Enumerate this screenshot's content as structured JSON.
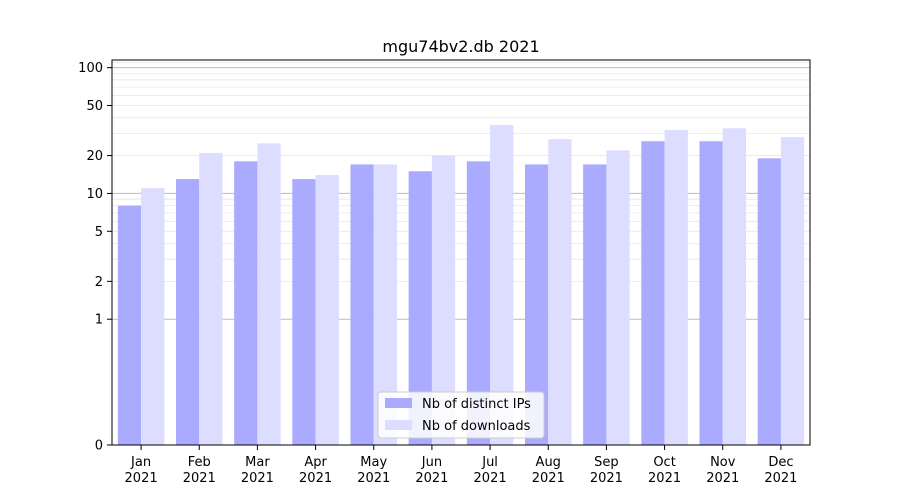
{
  "chart_data": {
    "type": "bar",
    "title": "mgu74bv2.db 2021",
    "xlabel": "",
    "ylabel": "",
    "yscale": "symlog",
    "ylim": [
      0,
      115
    ],
    "yticks": [
      0,
      1,
      2,
      5,
      10,
      20,
      50,
      100
    ],
    "categories": [
      "Jan",
      "Feb",
      "Mar",
      "Apr",
      "May",
      "Jun",
      "Jul",
      "Aug",
      "Sep",
      "Oct",
      "Nov",
      "Dec"
    ],
    "category_sublabel": "2021",
    "series": [
      {
        "name": "Nb of distinct IPs",
        "color": "#aaaaff",
        "values": [
          8,
          13,
          18,
          13,
          17,
          15,
          18,
          17,
          17,
          26,
          26,
          19
        ]
      },
      {
        "name": "Nb of downloads",
        "color": "#ddddff",
        "values": [
          11,
          21,
          25,
          14,
          17,
          20,
          35,
          27,
          22,
          32,
          33,
          28
        ]
      }
    ],
    "grid": true,
    "legend_position": "lower-center"
  }
}
